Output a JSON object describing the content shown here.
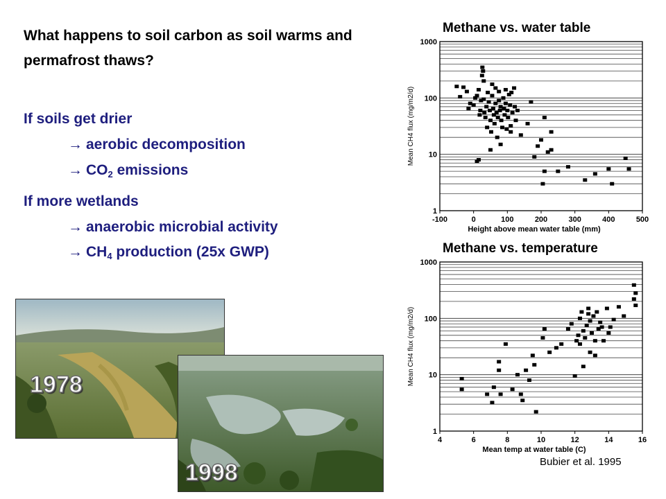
{
  "text": {
    "question": "What happens to soil carbon as soil warms and permafrost thaws?",
    "drier": "If soils get drier",
    "aerobic": "aerobic decomposition",
    "co2_pre": "CO",
    "co2_sub": "2",
    "co2_post": " emissions",
    "wetter": "If more wetlands",
    "anaerobic": "anaerobic microbial activity",
    "ch4_pre": "CH",
    "ch4_sub": "4",
    "ch4_post": " production (25x GWP)",
    "citation": "Bubier et al. 1995"
  },
  "photos": {
    "year_1": "1978",
    "year_2": "1998"
  },
  "colors": {
    "bullet_text": "#1e1e7e"
  },
  "chart_data": [
    {
      "type": "scatter",
      "title": "Methane vs. water table",
      "xlabel": "Height above mean water table (mm)",
      "ylabel": "Mean CH4 flux (mg/m2/d)",
      "xlim": [
        -100,
        500
      ],
      "ylim": [
        1,
        1000
      ],
      "y_scale": "log",
      "grid": true,
      "x_ticks": [
        -100,
        0,
        100,
        200,
        300,
        400,
        500
      ],
      "y_ticks": [
        1,
        10,
        100,
        1000
      ],
      "points": [
        [
          -50,
          160
        ],
        [
          -40,
          105
        ],
        [
          -30,
          155
        ],
        [
          -20,
          130
        ],
        [
          -15,
          65
        ],
        [
          -10,
          80
        ],
        [
          0,
          75
        ],
        [
          5,
          100
        ],
        [
          10,
          110
        ],
        [
          15,
          140
        ],
        [
          18,
          50
        ],
        [
          20,
          60
        ],
        [
          22,
          90
        ],
        [
          25,
          250
        ],
        [
          26,
          350
        ],
        [
          28,
          300
        ],
        [
          30,
          200
        ],
        [
          30,
          95
        ],
        [
          32,
          55
        ],
        [
          35,
          45
        ],
        [
          38,
          70
        ],
        [
          40,
          30
        ],
        [
          42,
          125
        ],
        [
          45,
          85
        ],
        [
          48,
          60
        ],
        [
          50,
          40
        ],
        [
          52,
          25
        ],
        [
          55,
          175
        ],
        [
          55,
          110
        ],
        [
          58,
          65
        ],
        [
          60,
          50
        ],
        [
          62,
          35
        ],
        [
          65,
          150
        ],
        [
          65,
          80
        ],
        [
          68,
          55
        ],
        [
          70,
          20
        ],
        [
          72,
          45
        ],
        [
          75,
          130
        ],
        [
          75,
          90
        ],
        [
          78,
          60
        ],
        [
          80,
          70
        ],
        [
          82,
          40
        ],
        [
          85,
          30
        ],
        [
          88,
          100
        ],
        [
          90,
          65
        ],
        [
          92,
          50
        ],
        [
          95,
          140
        ],
        [
          95,
          80
        ],
        [
          98,
          28
        ],
        [
          100,
          60
        ],
        [
          102,
          45
        ],
        [
          105,
          115
        ],
        [
          108,
          75
        ],
        [
          110,
          32
        ],
        [
          112,
          125
        ],
        [
          115,
          55
        ],
        [
          120,
          150
        ],
        [
          122,
          70
        ],
        [
          125,
          40
        ],
        [
          130,
          60
        ],
        [
          15,
          8
        ],
        [
          10,
          7.5
        ],
        [
          50,
          12
        ],
        [
          80,
          15
        ],
        [
          110,
          25
        ],
        [
          140,
          22
        ],
        [
          160,
          35
        ],
        [
          170,
          85
        ],
        [
          180,
          9
        ],
        [
          190,
          14
        ],
        [
          200,
          18
        ],
        [
          205,
          3
        ],
        [
          210,
          45
        ],
        [
          210,
          5
        ],
        [
          220,
          11
        ],
        [
          230,
          12
        ],
        [
          230,
          25
        ],
        [
          250,
          5
        ],
        [
          280,
          6
        ],
        [
          330,
          3.5
        ],
        [
          360,
          4.5
        ],
        [
          400,
          5.5
        ],
        [
          410,
          3
        ],
        [
          450,
          8.5
        ],
        [
          460,
          5.5
        ]
      ]
    },
    {
      "type": "scatter",
      "title": "Methane vs. temperature",
      "xlabel": "Mean temp at water table (C)",
      "ylabel": "Mean CH4 flux (mg/m2/d)",
      "xlim": [
        4,
        16
      ],
      "ylim": [
        1,
        1000
      ],
      "y_scale": "log",
      "grid": true,
      "x_ticks": [
        4,
        6,
        8,
        10,
        12,
        14,
        16
      ],
      "y_ticks": [
        1,
        10,
        100,
        1000
      ],
      "points": [
        [
          5.3,
          8.5
        ],
        [
          5.3,
          5.5
        ],
        [
          6.8,
          4.5
        ],
        [
          7.1,
          3.2
        ],
        [
          7.2,
          6
        ],
        [
          7.5,
          12
        ],
        [
          7.5,
          17
        ],
        [
          7.6,
          4.5
        ],
        [
          7.9,
          35
        ],
        [
          8.3,
          5.5
        ],
        [
          8.6,
          10
        ],
        [
          8.8,
          4.5
        ],
        [
          8.9,
          3.5
        ],
        [
          9.1,
          12
        ],
        [
          9.3,
          8
        ],
        [
          9.5,
          22
        ],
        [
          9.6,
          15
        ],
        [
          9.7,
          2.2
        ],
        [
          10.1,
          45
        ],
        [
          10.2,
          65
        ],
        [
          10.5,
          25
        ],
        [
          10.9,
          30
        ],
        [
          11.2,
          35
        ],
        [
          11.6,
          65
        ],
        [
          11.8,
          80
        ],
        [
          12.0,
          9.5
        ],
        [
          12.1,
          40
        ],
        [
          12.2,
          50
        ],
        [
          12.3,
          35
        ],
        [
          12.3,
          100
        ],
        [
          12.4,
          130
        ],
        [
          12.5,
          60
        ],
        [
          12.6,
          45
        ],
        [
          12.7,
          75
        ],
        [
          12.8,
          150
        ],
        [
          12.9,
          90
        ],
        [
          13.0,
          55
        ],
        [
          13.1,
          110
        ],
        [
          13.2,
          40
        ],
        [
          13.3,
          130
        ],
        [
          13.4,
          65
        ],
        [
          13.5,
          85
        ],
        [
          13.6,
          70
        ],
        [
          13.7,
          40
        ],
        [
          13.9,
          150
        ],
        [
          14.0,
          55
        ],
        [
          14.1,
          70
        ],
        [
          14.3,
          95
        ],
        [
          14.6,
          160
        ],
        [
          14.9,
          110
        ],
        [
          15.5,
          390
        ],
        [
          15.5,
          220
        ],
        [
          15.6,
          280
        ],
        [
          15.6,
          170
        ],
        [
          12.5,
          14
        ],
        [
          12.9,
          25
        ],
        [
          13.2,
          22
        ],
        [
          12.8,
          120
        ]
      ]
    }
  ]
}
